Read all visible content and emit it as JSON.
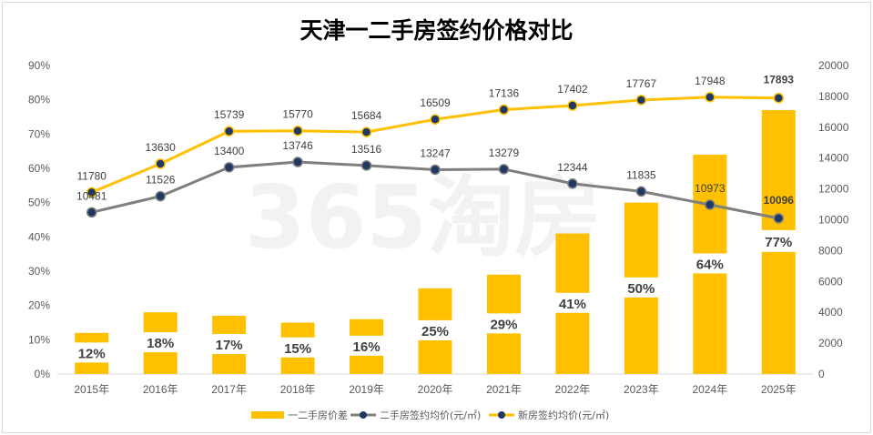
{
  "chart_data": {
    "type": "bar+line",
    "title": "天津一二手房签约价格对比",
    "categories": [
      "2015年",
      "2016年",
      "2017年",
      "2018年",
      "2019年",
      "2020年",
      "2021年",
      "2022年",
      "2023年",
      "2024年",
      "2025年"
    ],
    "left_axis": {
      "ylim": [
        0,
        90
      ],
      "ticks": [
        "0%",
        "10%",
        "20%",
        "30%",
        "40%",
        "50%",
        "60%",
        "70%",
        "80%",
        "90%"
      ]
    },
    "right_axis": {
      "ylim": [
        0,
        20000
      ],
      "ticks": [
        "0",
        "2000",
        "4000",
        "6000",
        "8000",
        "10000",
        "12000",
        "14000",
        "16000",
        "18000",
        "20000"
      ]
    },
    "series": [
      {
        "name": "一二手房价差",
        "kind": "bar",
        "axis": "left",
        "color": "#FFC000",
        "values": [
          12,
          18,
          17,
          15,
          16,
          25,
          29,
          41,
          50,
          64,
          77
        ],
        "labels": [
          "12%",
          "18%",
          "17%",
          "15%",
          "16%",
          "25%",
          "29%",
          "41%",
          "50%",
          "64%",
          "77%"
        ]
      },
      {
        "name": "二手房签约均价(元/㎡)",
        "kind": "line",
        "axis": "right",
        "color": "#7F7F7F",
        "marker": "#203864",
        "values": [
          10481,
          11526,
          13400,
          13746,
          13516,
          13247,
          13279,
          12344,
          11835,
          10973,
          10096
        ]
      },
      {
        "name": "新房签约均价(元/㎡)",
        "kind": "line",
        "axis": "right",
        "color": "#FFC000",
        "marker": "#203864",
        "values": [
          11780,
          13630,
          15739,
          15770,
          15684,
          16509,
          17136,
          17402,
          17767,
          17948,
          17893
        ]
      }
    ],
    "highlight_color": "#C00000",
    "legend_position": "bottom",
    "watermark": "365淘房"
  }
}
